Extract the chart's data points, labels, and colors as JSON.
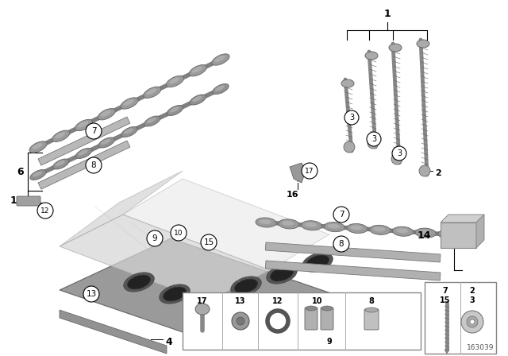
{
  "bg_color": "#ffffff",
  "diagram_number": "163039",
  "font_color": "#000000",
  "line_color": "#000000",
  "circle_edgecolor": "#000000",
  "circle_facecolor": "#ffffff",
  "gray_dark": "#7a7a7a",
  "gray_mid": "#a0a0a0",
  "gray_light": "#c8c8c8",
  "gray_lighter": "#e0e0e0",
  "figsize": [
    6.4,
    4.48
  ],
  "dpi": 100,
  "camshaft_color": "#909090",
  "bearing_color": "#b0b0b0",
  "head_color": "#d8d8d8",
  "gasket_color": "#888888",
  "bolt_color": "#aaaaaa"
}
